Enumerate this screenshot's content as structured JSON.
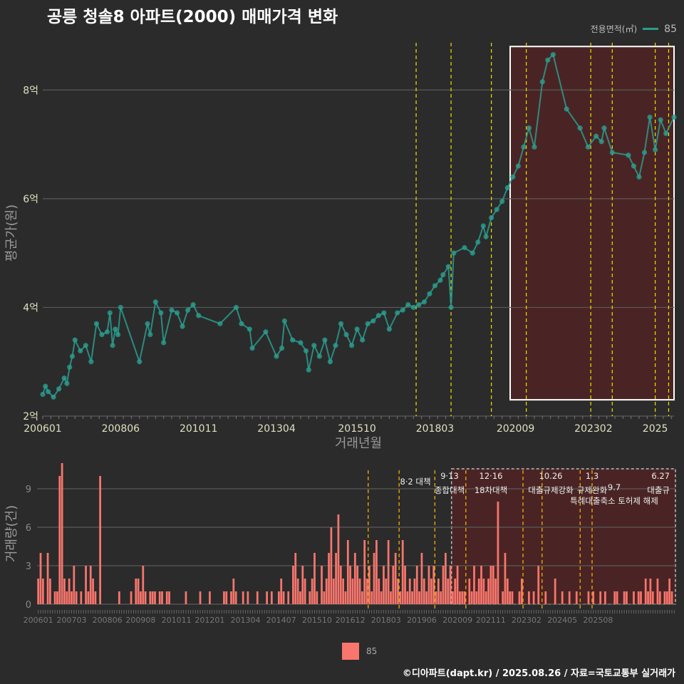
{
  "title": "공릉 청솔8 아파트(2000) 매매가격 변화",
  "legend": {
    "title": "전용면적(㎡)",
    "item": "85"
  },
  "bottom_legend": {
    "item": "85"
  },
  "credit": "©디아파트(dapt.kr) / 2025.08.26 / 자료=국토교통부 실거래가",
  "colors": {
    "background": "#2b2b2b",
    "price": "#2a9d8f",
    "volume": "#f8766d",
    "event_dark": "#e8a300",
    "event_bright": "#f0e000",
    "highlight_fill": "#4a2424"
  },
  "chart_data": [
    {
      "type": "scatter",
      "name": "price",
      "xlabel": "거래년월",
      "ylabel": "평균가(원)",
      "ylim": [
        2,
        9
      ],
      "y_unit": "억",
      "x_ticks": [
        "200601",
        "200806",
        "201011",
        "201304",
        "201510",
        "201803",
        "202009",
        "202302",
        "2025"
      ],
      "y_ticks": [
        "2억",
        "4억",
        "6억",
        "8억"
      ],
      "grid": true,
      "event_lines": [
        "2017-08",
        "2018-09",
        "2019-12",
        "2021-01",
        "2023-01",
        "2023-09",
        "2025-01",
        "2025-06"
      ],
      "highlight": {
        "from": "2020-07",
        "to": "2025-08",
        "ymin": 2.3,
        "ymax": 8.8
      },
      "series": [
        {
          "name": "85",
          "points": [
            [
              "2006-01",
              2.4
            ],
            [
              "2006-02",
              2.55
            ],
            [
              "2006-03",
              2.45
            ],
            [
              "2006-05",
              2.35
            ],
            [
              "2006-07",
              2.5
            ],
            [
              "2006-09",
              2.7
            ],
            [
              "2006-10",
              2.6
            ],
            [
              "2006-11",
              2.9
            ],
            [
              "2006-12",
              3.1
            ],
            [
              "2007-01",
              3.4
            ],
            [
              "2007-03",
              3.2
            ],
            [
              "2007-05",
              3.3
            ],
            [
              "2007-07",
              3.0
            ],
            [
              "2007-09",
              3.7
            ],
            [
              "2007-11",
              3.5
            ],
            [
              "2008-01",
              3.55
            ],
            [
              "2008-02",
              3.9
            ],
            [
              "2008-03",
              3.3
            ],
            [
              "2008-04",
              3.6
            ],
            [
              "2008-05",
              3.5
            ],
            [
              "2008-06",
              4.0
            ],
            [
              "2009-01",
              3.0
            ],
            [
              "2009-04",
              3.7
            ],
            [
              "2009-05",
              3.5
            ],
            [
              "2009-07",
              4.1
            ],
            [
              "2009-09",
              3.9
            ],
            [
              "2009-10",
              3.35
            ],
            [
              "2010-01",
              3.95
            ],
            [
              "2010-03",
              3.9
            ],
            [
              "2010-05",
              3.65
            ],
            [
              "2010-07",
              3.95
            ],
            [
              "2010-09",
              4.05
            ],
            [
              "2010-11",
              3.85
            ],
            [
              "2011-07",
              3.7
            ],
            [
              "2012-01",
              4.0
            ],
            [
              "2012-03",
              3.7
            ],
            [
              "2012-06",
              3.6
            ],
            [
              "2012-07",
              3.25
            ],
            [
              "2012-12",
              3.55
            ],
            [
              "2013-04",
              3.1
            ],
            [
              "2013-06",
              3.25
            ],
            [
              "2013-07",
              3.75
            ],
            [
              "2013-10",
              3.4
            ],
            [
              "2014-01",
              3.35
            ],
            [
              "2014-03",
              3.2
            ],
            [
              "2014-04",
              2.85
            ],
            [
              "2014-06",
              3.3
            ],
            [
              "2014-08",
              3.1
            ],
            [
              "2014-10",
              3.4
            ],
            [
              "2014-12",
              3.0
            ],
            [
              "2015-02",
              3.3
            ],
            [
              "2015-04",
              3.7
            ],
            [
              "2015-06",
              3.5
            ],
            [
              "2015-08",
              3.3
            ],
            [
              "2015-10",
              3.6
            ],
            [
              "2015-12",
              3.4
            ],
            [
              "2016-02",
              3.7
            ],
            [
              "2016-04",
              3.75
            ],
            [
              "2016-06",
              3.85
            ],
            [
              "2016-08",
              3.9
            ],
            [
              "2016-10",
              3.6
            ],
            [
              "2017-01",
              3.9
            ],
            [
              "2017-03",
              3.95
            ],
            [
              "2017-05",
              4.05
            ],
            [
              "2017-07",
              4.0
            ],
            [
              "2017-09",
              4.05
            ],
            [
              "2017-11",
              4.1
            ],
            [
              "2018-01",
              4.25
            ],
            [
              "2018-03",
              4.4
            ],
            [
              "2018-05",
              4.5
            ],
            [
              "2018-06",
              4.6
            ],
            [
              "2018-08",
              4.75
            ],
            [
              "2018-09",
              4.0
            ],
            [
              "2018-10",
              5.0
            ],
            [
              "2019-02",
              5.1
            ],
            [
              "2019-05",
              5.0
            ],
            [
              "2019-07",
              5.2
            ],
            [
              "2019-09",
              5.5
            ],
            [
              "2019-10",
              5.3
            ],
            [
              "2019-12",
              5.65
            ],
            [
              "2020-02",
              5.8
            ],
            [
              "2020-04",
              5.95
            ],
            [
              "2020-06",
              6.2
            ],
            [
              "2020-08",
              6.4
            ],
            [
              "2020-10",
              6.6
            ],
            [
              "2020-12",
              6.95
            ],
            [
              "2021-02",
              7.3
            ],
            [
              "2021-04",
              6.95
            ],
            [
              "2021-07",
              8.15
            ],
            [
              "2021-09",
              8.55
            ],
            [
              "2021-11",
              8.65
            ],
            [
              "2022-04",
              7.65
            ],
            [
              "2022-09",
              7.3
            ],
            [
              "2022-12",
              6.95
            ],
            [
              "2023-03",
              7.15
            ],
            [
              "2023-05",
              7.05
            ],
            [
              "2023-06",
              7.3
            ],
            [
              "2023-09",
              6.85
            ],
            [
              "2024-03",
              6.8
            ],
            [
              "2024-05",
              6.6
            ],
            [
              "2024-07",
              6.4
            ],
            [
              "2024-09",
              6.85
            ],
            [
              "2024-11",
              7.5
            ],
            [
              "2025-01",
              6.9
            ],
            [
              "2025-03",
              7.45
            ],
            [
              "2025-05",
              7.2
            ],
            [
              "2025-08",
              7.5
            ]
          ]
        }
      ]
    },
    {
      "type": "bar",
      "name": "volume",
      "ylabel": "거래량(건)",
      "ylim": [
        0,
        11
      ],
      "y_ticks": [
        "0",
        "3",
        "6",
        "9"
      ],
      "x_ticks": [
        "200601",
        "200703",
        "200806",
        "200908",
        "201011",
        "201201",
        "201304",
        "201407",
        "201510",
        "201612",
        "201803",
        "201906",
        "202009",
        "202111",
        "202302",
        "202405",
        "202508"
      ],
      "series": [
        {
          "name": "85",
          "monthly_from": "2006-01",
          "values": [
            2,
            4,
            2,
            0,
            4,
            2,
            0,
            1,
            1,
            10,
            11,
            2,
            1,
            2,
            1,
            3,
            1,
            0,
            1,
            0,
            3,
            1,
            3,
            2,
            1,
            0,
            10,
            0,
            0,
            0,
            0,
            0,
            0,
            0,
            1,
            0,
            0,
            0,
            0,
            1,
            0,
            2,
            2,
            1,
            3,
            1,
            0,
            1,
            1,
            1,
            0,
            1,
            1,
            0,
            1,
            1,
            0,
            0,
            0,
            0,
            0,
            0,
            1,
            0,
            0,
            0,
            0,
            0,
            1,
            0,
            0,
            0,
            1,
            0,
            0,
            0,
            0,
            0,
            1,
            1,
            0,
            1,
            2,
            1,
            0,
            0,
            1,
            0,
            1,
            0,
            0,
            0,
            1,
            0,
            0,
            0,
            1,
            0,
            1,
            0,
            0,
            1,
            2,
            1,
            0,
            1,
            0,
            3,
            4,
            2,
            1,
            3,
            2,
            0,
            1,
            2,
            4,
            1,
            0,
            3,
            1,
            2,
            4,
            6,
            2,
            4,
            7,
            3,
            2,
            1,
            5,
            3,
            2,
            4,
            3,
            2,
            1,
            5,
            2,
            3,
            1,
            4,
            5,
            2,
            1,
            3,
            2,
            5,
            1,
            3,
            4,
            2,
            1,
            5,
            3,
            1,
            2,
            1,
            2,
            3,
            1,
            4,
            2,
            1,
            3,
            2,
            3,
            1,
            2,
            1,
            3,
            4,
            2,
            3,
            1,
            2,
            3,
            1,
            1,
            1,
            0,
            2,
            1,
            3,
            1,
            2,
            3,
            2,
            1,
            2,
            3,
            3,
            2,
            8,
            0,
            1,
            4,
            2,
            1,
            1,
            0,
            0,
            1,
            2,
            0,
            0,
            1,
            0,
            1,
            0,
            3,
            0,
            0,
            1,
            0,
            0,
            0,
            2,
            0,
            0,
            1,
            0,
            0,
            1,
            0,
            0,
            1,
            0,
            0,
            0,
            0,
            1,
            0,
            1,
            0,
            0,
            1,
            0,
            1,
            0,
            0,
            0,
            1,
            1,
            0,
            0,
            1,
            1,
            0,
            0,
            1,
            0,
            1,
            1,
            0,
            2,
            1,
            2,
            1,
            0,
            2,
            1,
            0,
            1,
            1,
            2,
            1,
            0
          ]
        }
      ],
      "event_lines": [
        "2017-08",
        "2018-09",
        "2019-12",
        "2021-01",
        "2023-01",
        "2023-09",
        "2025-01",
        "2025-06"
      ],
      "annotations": [
        {
          "date": "8·2 대책",
          "text": ""
        },
        {
          "date": "9·13",
          "text": "종합대책"
        },
        {
          "date": "12·16",
          "text": "18차대책"
        },
        {
          "date": "10.26",
          "text": "대출규제강화"
        },
        {
          "date": "1.3",
          "text": "규제완화"
        },
        {
          "date": "9.7",
          "text": "특례대출축소 토허제 해제"
        },
        {
          "date": "6.27",
          "text": "대출규"
        }
      ],
      "highlight": {
        "from": "2020-07",
        "to": "2025-08"
      }
    }
  ]
}
